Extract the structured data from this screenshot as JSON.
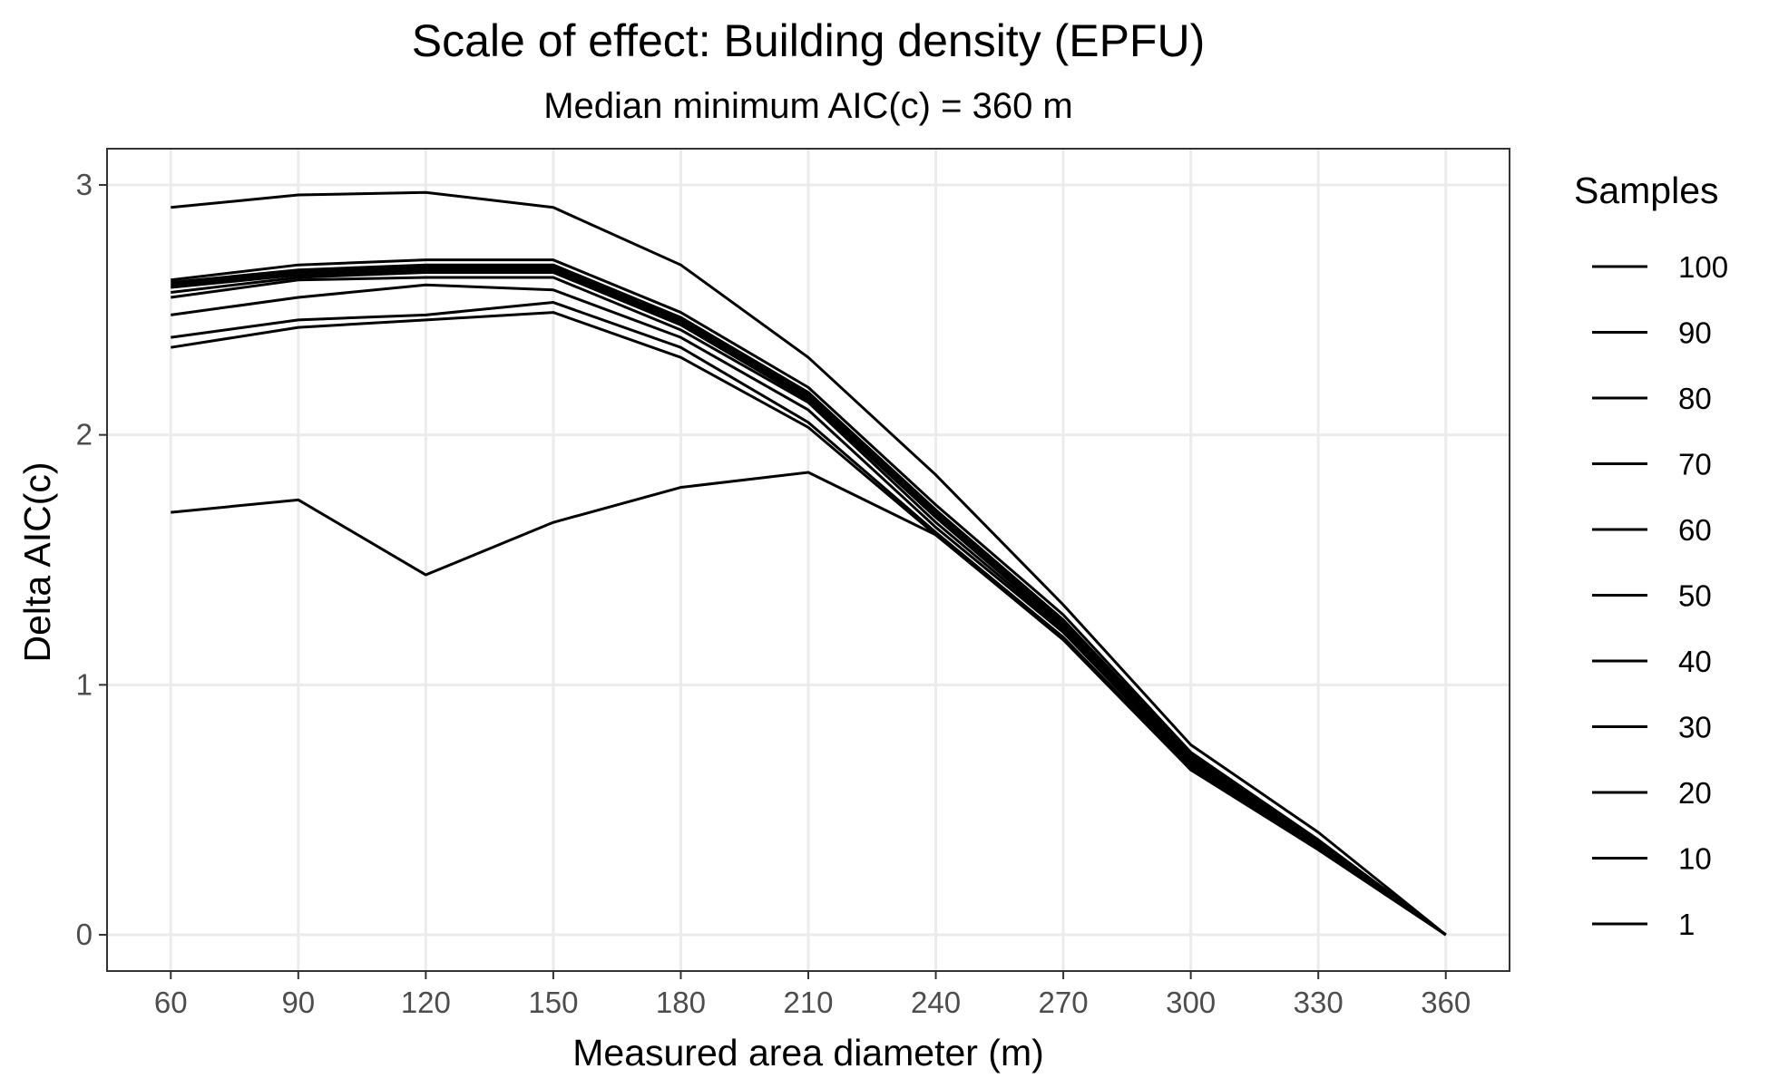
{
  "chart_data": {
    "type": "line",
    "title": "Scale of effect: Building density (EPFU)",
    "subtitle": "Median minimum AIC(c) = 360 m",
    "xlabel": "Measured area diameter (m)",
    "ylabel": "Delta AIC(c)",
    "x": [
      60,
      90,
      120,
      150,
      180,
      210,
      240,
      270,
      300,
      330,
      360
    ],
    "xlim": [
      45,
      375
    ],
    "ylim": [
      -0.145,
      3.145
    ],
    "x_ticks": [
      "60",
      "90",
      "120",
      "150",
      "180",
      "210",
      "240",
      "270",
      "300",
      "330",
      "360"
    ],
    "y_ticks": [
      "0",
      "1",
      "2",
      "3"
    ],
    "grid": true,
    "legend": {
      "title": "Samples",
      "position": "right",
      "labels": [
        "100",
        "90",
        "80",
        "70",
        "60",
        "50",
        "40",
        "30",
        "20",
        "10",
        "1"
      ]
    },
    "series": [
      {
        "values": [
          2.91,
          2.96,
          2.97,
          2.91,
          2.68,
          2.31,
          1.84,
          1.32,
          0.76,
          0.41,
          0.0
        ]
      },
      {
        "values": [
          2.62,
          2.68,
          2.7,
          2.7,
          2.49,
          2.19,
          1.72,
          1.28,
          0.73,
          0.38,
          0.0
        ]
      },
      {
        "values": [
          2.61,
          2.66,
          2.68,
          2.68,
          2.47,
          2.17,
          1.7,
          1.26,
          0.72,
          0.37,
          0.0
        ]
      },
      {
        "values": [
          2.6,
          2.65,
          2.67,
          2.67,
          2.46,
          2.16,
          1.69,
          1.25,
          0.71,
          0.37,
          0.0
        ]
      },
      {
        "values": [
          2.59,
          2.64,
          2.66,
          2.66,
          2.45,
          2.15,
          1.68,
          1.24,
          0.7,
          0.36,
          0.0
        ]
      },
      {
        "values": [
          2.57,
          2.63,
          2.65,
          2.65,
          2.44,
          2.14,
          1.67,
          1.23,
          0.7,
          0.36,
          0.0
        ]
      },
      {
        "values": [
          2.55,
          2.62,
          2.63,
          2.63,
          2.42,
          2.13,
          1.65,
          1.22,
          0.69,
          0.35,
          0.0
        ]
      },
      {
        "values": [
          2.48,
          2.55,
          2.6,
          2.58,
          2.39,
          2.1,
          1.63,
          1.21,
          0.68,
          0.35,
          0.0
        ]
      },
      {
        "values": [
          2.39,
          2.46,
          2.48,
          2.53,
          2.35,
          2.05,
          1.61,
          1.19,
          0.67,
          0.35,
          0.0
        ]
      },
      {
        "values": [
          2.35,
          2.43,
          2.46,
          2.49,
          2.31,
          2.03,
          1.6,
          1.18,
          0.66,
          0.34,
          0.0
        ]
      },
      {
        "values": [
          1.69,
          1.74,
          1.44,
          1.65,
          1.79,
          1.85,
          1.6,
          1.19,
          0.66,
          0.35,
          0.0
        ]
      }
    ]
  }
}
